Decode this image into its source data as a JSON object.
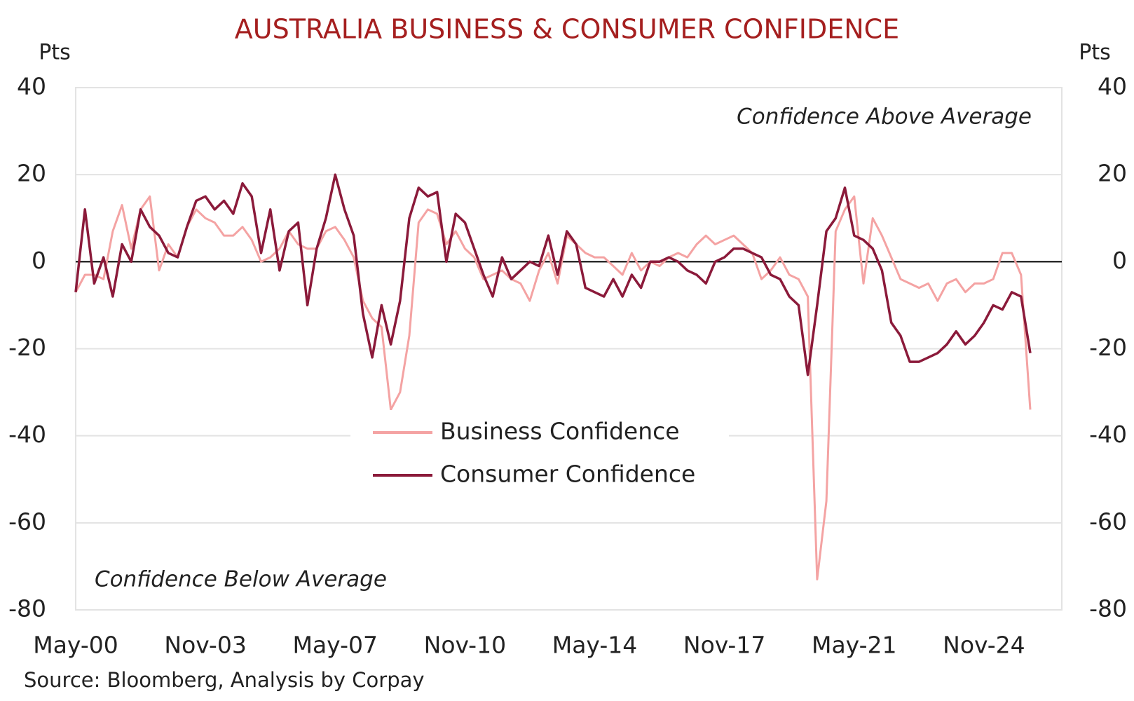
{
  "chart_data": {
    "type": "line",
    "title": "AUSTRALIA BUSINESS & CONSUMER CONFIDENCE",
    "y_label": "Pts",
    "y2_label": "Pts",
    "source": "Source: Bloomberg, Analysis by Corpay",
    "annotations": [
      "Confidence Above Average",
      "Confidence Below Average"
    ],
    "x": [
      "May-00",
      "Aug-00",
      "Nov-00",
      "Feb-01",
      "May-01",
      "Aug-01",
      "Nov-01",
      "Feb-02",
      "May-02",
      "Aug-02",
      "Nov-02",
      "Feb-03",
      "May-03",
      "Aug-03",
      "Nov-03",
      "Feb-04",
      "May-04",
      "Aug-04",
      "Nov-04",
      "Feb-05",
      "May-05",
      "Aug-05",
      "Nov-05",
      "Feb-06",
      "May-06",
      "Aug-06",
      "Nov-06",
      "Feb-07",
      "May-07",
      "Aug-07",
      "Nov-07",
      "Feb-08",
      "May-08",
      "Aug-08",
      "Nov-08",
      "Feb-09",
      "May-09",
      "Aug-09",
      "Nov-09",
      "Feb-10",
      "May-10",
      "Aug-10",
      "Nov-10",
      "Feb-11",
      "May-11",
      "Aug-11",
      "Nov-11",
      "Feb-12",
      "May-12",
      "Aug-12",
      "Nov-12",
      "Feb-13",
      "May-13",
      "Aug-13",
      "Nov-13",
      "Feb-14",
      "May-14",
      "Aug-14",
      "Nov-14",
      "Feb-15",
      "May-15",
      "Aug-15",
      "Nov-15",
      "Feb-16",
      "May-16",
      "Aug-16",
      "Nov-16",
      "Feb-17",
      "May-17",
      "Aug-17",
      "Nov-17",
      "Feb-18",
      "May-18",
      "Aug-18",
      "Nov-18",
      "Feb-19",
      "May-19",
      "Aug-19",
      "Nov-19",
      "Feb-20",
      "May-20",
      "Aug-20",
      "Nov-20",
      "Feb-21",
      "May-21",
      "Aug-21",
      "Nov-21",
      "Feb-22",
      "May-22",
      "Aug-22",
      "Nov-22",
      "Feb-23",
      "May-23",
      "Aug-23",
      "Nov-23",
      "Feb-24",
      "May-24",
      "Aug-24",
      "Nov-24",
      "Feb-25",
      "May-25",
      "Aug-25",
      "Nov-25",
      "Feb-26"
    ],
    "xticks": [
      "May-00",
      "Nov-03",
      "May-07",
      "Nov-10",
      "May-14",
      "Nov-17",
      "May-21",
      "Nov-24"
    ],
    "series": [
      {
        "name": "Business Confidence",
        "color": "#f4a3a3",
        "values": [
          -7,
          -3,
          -3,
          -4,
          7,
          13,
          3,
          12,
          15,
          -2,
          4,
          1,
          8,
          12,
          10,
          9,
          6,
          6,
          8,
          5,
          0,
          1,
          3,
          7,
          4,
          3,
          3,
          7,
          8,
          5,
          1,
          -9,
          -13,
          -15,
          -34,
          -30,
          -17,
          9,
          12,
          11,
          4,
          7,
          3,
          1,
          -4,
          -3,
          -2,
          -4,
          -5,
          -9,
          -2,
          2,
          -5,
          6,
          4,
          2,
          1,
          1,
          -1,
          -3,
          2,
          -2,
          0,
          -1,
          1,
          2,
          1,
          4,
          6,
          4,
          5,
          6,
          4,
          2,
          -4,
          -2,
          1,
          -3,
          -4,
          -8,
          -73,
          -55,
          7,
          12,
          15,
          -5,
          10,
          6,
          1,
          -4,
          -5,
          -6,
          -5,
          -9,
          -5,
          -4,
          -7,
          -5,
          -5,
          -4,
          2,
          2,
          -3,
          -34
        ]
      },
      {
        "name": "Consumer Confidence",
        "color": "#8b1a3a",
        "values": [
          -7,
          12,
          -5,
          1,
          -8,
          4,
          0,
          12,
          8,
          6,
          2,
          1,
          8,
          14,
          15,
          12,
          14,
          11,
          18,
          15,
          2,
          12,
          -2,
          7,
          9,
          -10,
          3,
          10,
          20,
          12,
          6,
          -12,
          -22,
          -10,
          -19,
          -9,
          10,
          17,
          15,
          16,
          0,
          11,
          9,
          3,
          -3,
          -8,
          1,
          -4,
          -2,
          0,
          -1,
          6,
          -3,
          7,
          4,
          -6,
          -7,
          -8,
          -4,
          -8,
          -3,
          -6,
          0,
          0,
          1,
          0,
          -2,
          -3,
          -5,
          0,
          1,
          3,
          3,
          2,
          1,
          -3,
          -4,
          -8,
          -10,
          -26,
          -10,
          7,
          10,
          17,
          6,
          5,
          3,
          -2,
          -14,
          -17,
          -23,
          -23,
          -22,
          -21,
          -19,
          -16,
          -19,
          -17,
          -14,
          -10,
          -11,
          -7,
          -8,
          -21
        ]
      }
    ],
    "ylim": [
      -80,
      40
    ],
    "yticks": [
      -80,
      -60,
      -40,
      -20,
      0,
      20,
      40
    ],
    "y2lim": [
      -80,
      40
    ],
    "y2ticks": [
      -80,
      -60,
      -40,
      -20,
      0,
      20,
      40
    ],
    "grid": true
  }
}
